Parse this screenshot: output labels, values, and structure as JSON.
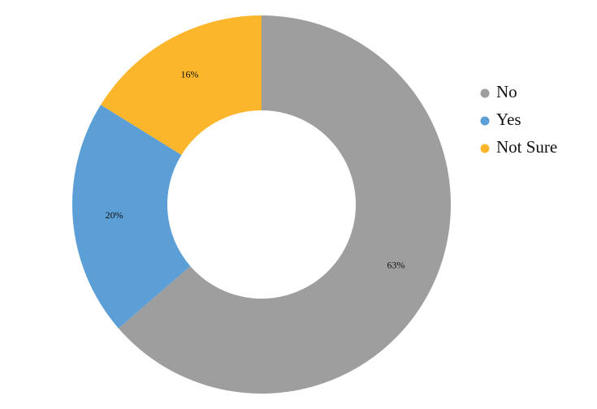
{
  "chart_data": {
    "type": "donut",
    "categories": [
      "No",
      "Yes",
      "Not Sure"
    ],
    "values": [
      63,
      20,
      16
    ],
    "value_labels": [
      "63%",
      "20%",
      "16%"
    ],
    "colors": [
      "#9e9e9e",
      "#5b9fd6",
      "#fbb62c"
    ],
    "legend": "right"
  }
}
